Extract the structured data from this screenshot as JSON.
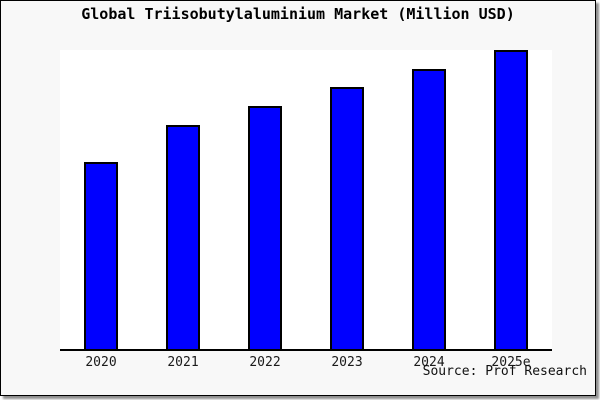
{
  "title": "Global Triisobutylaluminium Market (Million USD)",
  "source_credit": "Source: Prof Research",
  "colors": {
    "bar_fill": "#0000ff",
    "bar_edge": "#000000",
    "frame_background": "#f8f8f8",
    "plot_background": "#ffffff",
    "axis": "#000000",
    "frame_border": "#000000",
    "shadow": "#8f8f8f"
  },
  "chart_data": {
    "type": "bar",
    "title": "Global Triisobutylaluminium Market (Million USD)",
    "categories": [
      "2020",
      "2021",
      "2022",
      "2023",
      "2024",
      "2025e"
    ],
    "values": [
      62.8,
      75.1,
      81.4,
      87.7,
      93.7,
      100
    ],
    "xlabel": "",
    "ylabel": "",
    "ylim": [
      0,
      100
    ],
    "grid": false,
    "y_axis_visible": false,
    "legend": null,
    "annotation": "Source: Prof Research"
  }
}
